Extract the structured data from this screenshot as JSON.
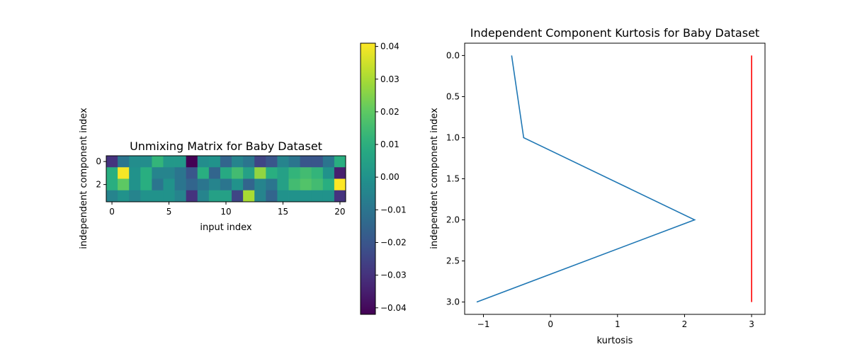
{
  "chart_data": [
    {
      "type": "heatmap",
      "title": "Unmixing Matrix for Baby Dataset",
      "xlabel": "input index",
      "ylabel": "independent component index",
      "colormap": "viridis",
      "xticks": [
        "0",
        "5",
        "10",
        "15",
        "20"
      ],
      "yticks": [
        "0",
        "2"
      ],
      "colorbar": {
        "vmin": -0.042,
        "vmax": 0.041,
        "ticks": [
          "0.04",
          "0.03",
          "0.02",
          "0.01",
          "0.00",
          "−0.01",
          "−0.02",
          "−0.03",
          "−0.04"
        ]
      },
      "matrix": [
        [
          -0.03,
          -0.01,
          -0.002,
          -0.002,
          0.012,
          0.002,
          0.002,
          -0.042,
          -0.002,
          0.0,
          -0.015,
          -0.005,
          -0.01,
          -0.025,
          -0.02,
          -0.005,
          -0.01,
          -0.02,
          -0.02,
          -0.01,
          0.01
        ],
        [
          0.01,
          0.04,
          0.0,
          0.01,
          -0.005,
          -0.005,
          -0.01,
          -0.02,
          0.01,
          -0.015,
          0.008,
          0.015,
          0.005,
          0.027,
          0.01,
          0.005,
          0.012,
          0.015,
          0.012,
          0.0,
          -0.035
        ],
        [
          0.01,
          0.02,
          0.0,
          0.01,
          -0.01,
          0.0,
          -0.01,
          -0.015,
          -0.01,
          -0.005,
          -0.01,
          0.0,
          -0.015,
          -0.005,
          -0.01,
          0.005,
          0.015,
          0.018,
          0.015,
          0.01,
          0.041
        ],
        [
          -0.005,
          0.0,
          -0.005,
          0.0,
          0.0,
          0.0,
          -0.005,
          -0.03,
          -0.005,
          0.005,
          0.005,
          -0.025,
          0.03,
          -0.005,
          -0.015,
          0.0,
          0.0,
          0.0,
          0.0,
          0.0,
          -0.03
        ]
      ]
    },
    {
      "type": "line",
      "title": "Independent Component Kurtosis for Baby Dataset",
      "xlabel": "kurtosis",
      "ylabel": "independent component index",
      "xlim": [
        -1.28,
        3.2
      ],
      "ylim": [
        3.15,
        -0.15
      ],
      "xticks": [
        "−1",
        "0",
        "1",
        "2",
        "3"
      ],
      "yticks": [
        "0.0",
        "0.5",
        "1.0",
        "1.5",
        "2.0",
        "2.5",
        "3.0"
      ],
      "series": [
        {
          "color": "#1f77b4",
          "x": [
            -0.58,
            -0.4,
            2.15,
            -1.1
          ],
          "y": [
            0,
            1,
            2,
            3
          ]
        },
        {
          "color": "#ff0000",
          "x": [
            3,
            3
          ],
          "y": [
            0,
            3
          ]
        }
      ]
    }
  ]
}
